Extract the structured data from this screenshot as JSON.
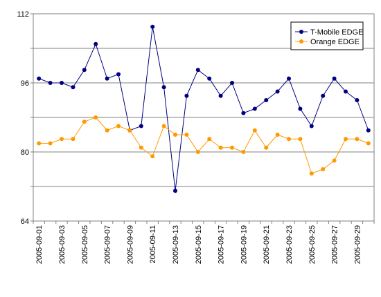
{
  "chart_data": {
    "type": "line",
    "title": "",
    "xlabel": "",
    "ylabel": "",
    "ylim": [
      64,
      112
    ],
    "yticks": [
      "64",
      "80",
      "96",
      "112"
    ],
    "grid": true,
    "legend_position": "top-right",
    "x": [
      "2005-09-01",
      "2005-09-02",
      "2005-09-03",
      "2005-09-04",
      "2005-09-05",
      "2005-09-06",
      "2005-09-07",
      "2005-09-08",
      "2005-09-09",
      "2005-09-10",
      "2005-09-11",
      "2005-09-12",
      "2005-09-13",
      "2005-09-14",
      "2005-09-15",
      "2005-09-16",
      "2005-09-17",
      "2005-09-18",
      "2005-09-19",
      "2005-09-20",
      "2005-09-21",
      "2005-09-22",
      "2005-09-23",
      "2005-09-24",
      "2005-09-25",
      "2005-09-26",
      "2005-09-27",
      "2005-09-28",
      "2005-09-29",
      "2005-09-30"
    ],
    "xtick_labels": [
      "2005-09-01",
      "",
      "2005-09-03",
      "",
      "2005-09-05",
      "",
      "2005-09-07",
      "",
      "2005-09-09",
      "",
      "2005-09-11",
      "",
      "2005-09-13",
      "",
      "2005-09-15",
      "",
      "2005-09-17",
      "",
      "2005-09-19",
      "",
      "2005-09-21",
      "",
      "2005-09-23",
      "",
      "2005-09-25",
      "",
      "2005-09-27",
      "",
      "2005-09-29",
      ""
    ],
    "series": [
      {
        "name": "T-Mobile EDGE",
        "color": "#000080",
        "values": [
          97,
          96,
          96,
          95,
          99,
          105,
          97,
          98,
          85,
          86,
          109,
          95,
          71,
          93,
          99,
          97,
          93,
          96,
          89,
          90,
          92,
          94,
          97,
          90,
          86,
          93,
          97,
          94,
          92,
          85
        ]
      },
      {
        "name": "Orange EDGE",
        "color": "#FF9900",
        "values": [
          82,
          82,
          83,
          83,
          87,
          88,
          85,
          86,
          85,
          81,
          79,
          86,
          84,
          84,
          80,
          83,
          81,
          81,
          80,
          85,
          81,
          84,
          83,
          83,
          75,
          76,
          78,
          83,
          83,
          82
        ]
      }
    ]
  }
}
